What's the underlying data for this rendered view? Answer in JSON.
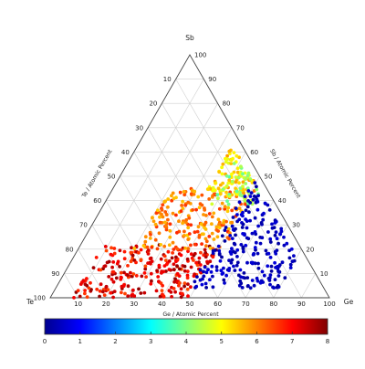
{
  "chart_data": {
    "type": "scatter",
    "subtype": "ternary",
    "vertices": {
      "top": "Sb",
      "left": "Te",
      "right": "Ge"
    },
    "axis_labels": {
      "left": "Te / Atomic Percent",
      "right": "Sb / Atomic Percent",
      "bottom": "Ge / Atomic Percent"
    },
    "ticks": [
      "10",
      "20",
      "30",
      "40",
      "50",
      "60",
      "70",
      "80",
      "90",
      "100"
    ],
    "grid": true,
    "colorbar": {
      "min": 0,
      "max": 8,
      "ticks": [
        "0",
        "1",
        "2",
        "3",
        "4",
        "5",
        "6",
        "7",
        "8"
      ],
      "colormap": "jet",
      "position": "bottom"
    },
    "point_color_stops": [
      "#00008f",
      "#0000ff",
      "#0080ff",
      "#00ffff",
      "#80ff80",
      "#ffff00",
      "#ff8000",
      "#ff0000",
      "#800000"
    ],
    "point_clusters": [
      {
        "ge": [
          8,
          50
        ],
        "sb": [
          0,
          22
        ],
        "value": [
          6.4,
          7.9
        ],
        "count": 260
      },
      {
        "ge": [
          20,
          52
        ],
        "sb": [
          20,
          45
        ],
        "value": [
          5.4,
          6.7
        ],
        "count": 200
      },
      {
        "ge": [
          34,
          50
        ],
        "sb": [
          42,
          62
        ],
        "value": [
          4.6,
          5.8
        ],
        "count": 90
      },
      {
        "ge": [
          38,
          54
        ],
        "sb": [
          38,
          62
        ],
        "value": [
          3.6,
          4.8
        ],
        "count": 45
      },
      {
        "ge": [
          48,
          80
        ],
        "sb": [
          4,
          60
        ],
        "value": [
          0.1,
          0.7
        ],
        "count": 230
      }
    ]
  }
}
